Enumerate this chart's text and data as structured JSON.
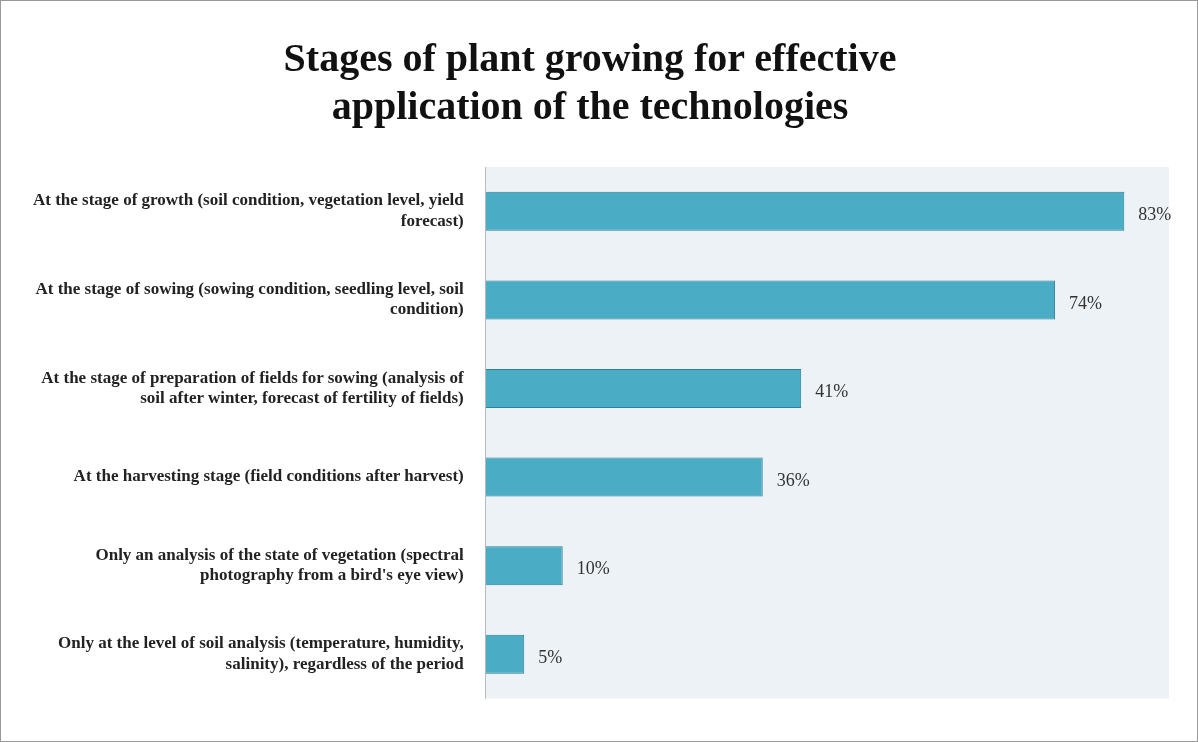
{
  "chart_data": {
    "type": "bar",
    "orientation": "horizontal",
    "title": "Stages of plant growing for effective application of the technologies",
    "categories": [
      "At the stage of growth (soil condition, vegetation level, yield forecast)",
      "At the stage of sowing (sowing condition, seedling level, soil condition)",
      "At the stage of preparation of fields for sowing (analysis of soil after winter, forecast of fertility of fields)",
      "At the harvesting stage (field conditions after harvest)",
      "Only an analysis of the state of vegetation (spectral photography from a bird's eye view)",
      "Only at the level of soil analysis (temperature, humidity, salinity), regardless of the period"
    ],
    "values": [
      83,
      74,
      41,
      36,
      10,
      5
    ],
    "value_labels": [
      "83%",
      "74%",
      "41%",
      "36%",
      "10%",
      "5%"
    ],
    "color": "#4bacc6",
    "legend": false
  }
}
